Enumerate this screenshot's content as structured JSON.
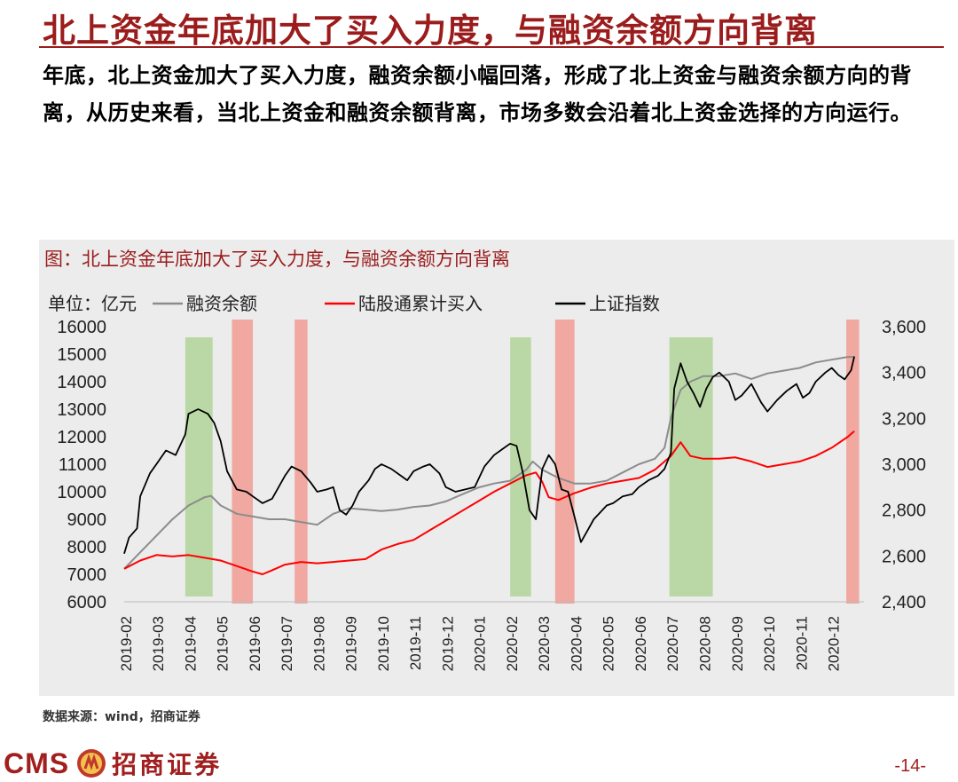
{
  "page": {
    "title": "北上资金年底加大了买入力度，与融资余额方向背离",
    "summary": "年底，北上资金加大了买入力度，融资余额小幅回落，形成了北上资金与融资余额方向的背离，从历史来看，当北上资金和融资余额背离，市场多数会沿着北上资金选择的方向运行。",
    "source": "数据来源：wind，招商证券",
    "logo_text": "CMS",
    "logo_cn": "招商证券",
    "page_number": "-14-"
  },
  "colors": {
    "brand_red": "#9b1c1c",
    "financing_balance": "#8c8c8c",
    "northbound": "#ff0000",
    "sse_index": "#000000",
    "shade_green": "#a9d18e",
    "shade_red": "#f28b82"
  },
  "chart_data": {
    "type": "line",
    "title": "图：北上资金年底加大了买入力度，与融资余额方向背离",
    "unit_label": "单位：亿元",
    "x_categories": [
      "2019-02",
      "2019-03",
      "2019-04",
      "2019-05",
      "2019-06",
      "2019-07",
      "2019-08",
      "2019-09",
      "2019-10",
      "2019-11",
      "2019-12",
      "2020-01",
      "2020-02",
      "2020-03",
      "2020-04",
      "2020-05",
      "2020-06",
      "2020-07",
      "2020-08",
      "2020-09",
      "2020-10",
      "2020-11",
      "2020-12"
    ],
    "left_axis": {
      "min": 6000,
      "max": 16000,
      "ticks": [
        "6000",
        "7000",
        "8000",
        "9000",
        "10000",
        "11000",
        "12000",
        "13000",
        "14000",
        "15000",
        "16000"
      ]
    },
    "right_axis": {
      "min": 2400,
      "max": 3600,
      "ticks": [
        "2,400",
        "2,600",
        "2,800",
        "3,000",
        "3,200",
        "3,400",
        "3,600"
      ]
    },
    "shaded_periods": [
      {
        "color": "green",
        "start": 1.9,
        "end": 2.75
      },
      {
        "color": "red",
        "start": 3.35,
        "end": 4.0
      },
      {
        "color": "red",
        "start": 5.3,
        "end": 5.7
      },
      {
        "color": "green",
        "start": 12.0,
        "end": 12.65
      },
      {
        "color": "red",
        "start": 13.4,
        "end": 14.0
      },
      {
        "color": "green",
        "start": 16.95,
        "end": 18.3
      },
      {
        "color": "red",
        "start": 22.45,
        "end": 22.85
      }
    ],
    "series": [
      {
        "name": "融资余额",
        "axis": "left",
        "line": "gray",
        "points": [
          [
            0,
            7200
          ],
          [
            0.5,
            7800
          ],
          [
            1.0,
            8400
          ],
          [
            1.5,
            9000
          ],
          [
            2.0,
            9500
          ],
          [
            2.5,
            9800
          ],
          [
            2.7,
            9850
          ],
          [
            3.0,
            9500
          ],
          [
            3.5,
            9200
          ],
          [
            4.0,
            9100
          ],
          [
            4.5,
            9000
          ],
          [
            5.0,
            9000
          ],
          [
            5.5,
            8900
          ],
          [
            6.0,
            8800
          ],
          [
            6.5,
            9200
          ],
          [
            7.0,
            9400
          ],
          [
            7.5,
            9350
          ],
          [
            8.0,
            9300
          ],
          [
            8.5,
            9350
          ],
          [
            9.0,
            9450
          ],
          [
            9.5,
            9500
          ],
          [
            10.0,
            9650
          ],
          [
            10.5,
            9900
          ],
          [
            11.0,
            10150
          ],
          [
            11.5,
            10300
          ],
          [
            12.0,
            10400
          ],
          [
            12.5,
            10800
          ],
          [
            12.7,
            11100
          ],
          [
            13.0,
            10800
          ],
          [
            13.5,
            10500
          ],
          [
            14.0,
            10300
          ],
          [
            14.5,
            10300
          ],
          [
            15.0,
            10400
          ],
          [
            15.5,
            10700
          ],
          [
            16.0,
            11000
          ],
          [
            16.5,
            11200
          ],
          [
            16.8,
            11600
          ],
          [
            17.0,
            12700
          ],
          [
            17.3,
            13700
          ],
          [
            17.6,
            14000
          ],
          [
            18.0,
            14200
          ],
          [
            18.5,
            14200
          ],
          [
            19.0,
            14300
          ],
          [
            19.5,
            14100
          ],
          [
            20.0,
            14300
          ],
          [
            20.5,
            14400
          ],
          [
            21.0,
            14500
          ],
          [
            21.5,
            14700
          ],
          [
            22.0,
            14800
          ],
          [
            22.5,
            14900
          ],
          [
            22.7,
            14900
          ]
        ]
      },
      {
        "name": "陆股通累计买入",
        "axis": "left",
        "line": "red",
        "points": [
          [
            0,
            7200
          ],
          [
            0.5,
            7500
          ],
          [
            1.0,
            7700
          ],
          [
            1.5,
            7650
          ],
          [
            2.0,
            7700
          ],
          [
            2.5,
            7600
          ],
          [
            3.0,
            7500
          ],
          [
            3.5,
            7300
          ],
          [
            4.0,
            7100
          ],
          [
            4.3,
            7000
          ],
          [
            4.6,
            7150
          ],
          [
            5.0,
            7350
          ],
          [
            5.5,
            7450
          ],
          [
            6.0,
            7400
          ],
          [
            6.5,
            7450
          ],
          [
            7.0,
            7500
          ],
          [
            7.5,
            7550
          ],
          [
            8.0,
            7900
          ],
          [
            8.5,
            8100
          ],
          [
            9.0,
            8250
          ],
          [
            9.5,
            8600
          ],
          [
            10.0,
            8950
          ],
          [
            10.5,
            9300
          ],
          [
            11.0,
            9650
          ],
          [
            11.5,
            10000
          ],
          [
            12.0,
            10300
          ],
          [
            12.5,
            10600
          ],
          [
            12.8,
            10700
          ],
          [
            13.0,
            10350
          ],
          [
            13.2,
            9800
          ],
          [
            13.5,
            9700
          ],
          [
            14.0,
            9950
          ],
          [
            14.5,
            10150
          ],
          [
            15.0,
            10300
          ],
          [
            15.5,
            10400
          ],
          [
            16.0,
            10500
          ],
          [
            16.5,
            10800
          ],
          [
            17.0,
            11300
          ],
          [
            17.3,
            11800
          ],
          [
            17.6,
            11300
          ],
          [
            18.0,
            11200
          ],
          [
            18.5,
            11200
          ],
          [
            19.0,
            11250
          ],
          [
            19.5,
            11100
          ],
          [
            20.0,
            10900
          ],
          [
            20.5,
            11000
          ],
          [
            21.0,
            11100
          ],
          [
            21.5,
            11300
          ],
          [
            22.0,
            11600
          ],
          [
            22.5,
            12000
          ],
          [
            22.7,
            12200
          ]
        ]
      },
      {
        "name": "上证指数",
        "axis": "right",
        "line": "black",
        "points": [
          [
            0,
            2610
          ],
          [
            0.15,
            2680
          ],
          [
            0.4,
            2720
          ],
          [
            0.5,
            2860
          ],
          [
            0.8,
            2960
          ],
          [
            1.0,
            3000
          ],
          [
            1.3,
            3060
          ],
          [
            1.6,
            3040
          ],
          [
            1.9,
            3130
          ],
          [
            2.0,
            3220
          ],
          [
            2.3,
            3240
          ],
          [
            2.6,
            3220
          ],
          [
            2.8,
            3180
          ],
          [
            3.0,
            3100
          ],
          [
            3.2,
            2970
          ],
          [
            3.5,
            2890
          ],
          [
            3.8,
            2880
          ],
          [
            4.0,
            2860
          ],
          [
            4.3,
            2830
          ],
          [
            4.6,
            2850
          ],
          [
            4.8,
            2900
          ],
          [
            5.0,
            2950
          ],
          [
            5.2,
            2990
          ],
          [
            5.5,
            2970
          ],
          [
            5.8,
            2920
          ],
          [
            6.0,
            2880
          ],
          [
            6.3,
            2890
          ],
          [
            6.5,
            2900
          ],
          [
            6.7,
            2800
          ],
          [
            6.9,
            2780
          ],
          [
            7.1,
            2820
          ],
          [
            7.3,
            2880
          ],
          [
            7.6,
            2930
          ],
          [
            7.8,
            2980
          ],
          [
            8.0,
            3000
          ],
          [
            8.3,
            2980
          ],
          [
            8.6,
            2950
          ],
          [
            8.8,
            2930
          ],
          [
            9.0,
            2970
          ],
          [
            9.3,
            2990
          ],
          [
            9.5,
            3000
          ],
          [
            9.8,
            2960
          ],
          [
            10.0,
            2900
          ],
          [
            10.3,
            2880
          ],
          [
            10.6,
            2890
          ],
          [
            10.9,
            2900
          ],
          [
            11.2,
            2990
          ],
          [
            11.5,
            3040
          ],
          [
            11.8,
            3070
          ],
          [
            12.0,
            3090
          ],
          [
            12.2,
            3080
          ],
          [
            12.4,
            2960
          ],
          [
            12.6,
            2800
          ],
          [
            12.8,
            2760
          ],
          [
            13.0,
            2980
          ],
          [
            13.2,
            3040
          ],
          [
            13.4,
            3000
          ],
          [
            13.6,
            2890
          ],
          [
            13.8,
            2880
          ],
          [
            14.0,
            2770
          ],
          [
            14.2,
            2660
          ],
          [
            14.4,
            2710
          ],
          [
            14.6,
            2760
          ],
          [
            14.8,
            2790
          ],
          [
            15.0,
            2820
          ],
          [
            15.2,
            2830
          ],
          [
            15.5,
            2860
          ],
          [
            15.8,
            2870
          ],
          [
            16.0,
            2900
          ],
          [
            16.3,
            2930
          ],
          [
            16.6,
            2950
          ],
          [
            16.8,
            2980
          ],
          [
            17.0,
            3050
          ],
          [
            17.1,
            3330
          ],
          [
            17.3,
            3440
          ],
          [
            17.5,
            3360
          ],
          [
            17.7,
            3310
          ],
          [
            17.9,
            3250
          ],
          [
            18.1,
            3330
          ],
          [
            18.3,
            3380
          ],
          [
            18.5,
            3400
          ],
          [
            18.8,
            3360
          ],
          [
            19.0,
            3280
          ],
          [
            19.2,
            3300
          ],
          [
            19.5,
            3350
          ],
          [
            19.8,
            3270
          ],
          [
            20.0,
            3230
          ],
          [
            20.3,
            3280
          ],
          [
            20.6,
            3320
          ],
          [
            20.9,
            3350
          ],
          [
            21.1,
            3290
          ],
          [
            21.3,
            3310
          ],
          [
            21.5,
            3360
          ],
          [
            21.8,
            3400
          ],
          [
            22.0,
            3420
          ],
          [
            22.2,
            3390
          ],
          [
            22.4,
            3370
          ],
          [
            22.6,
            3410
          ],
          [
            22.7,
            3470
          ]
        ]
      }
    ]
  }
}
